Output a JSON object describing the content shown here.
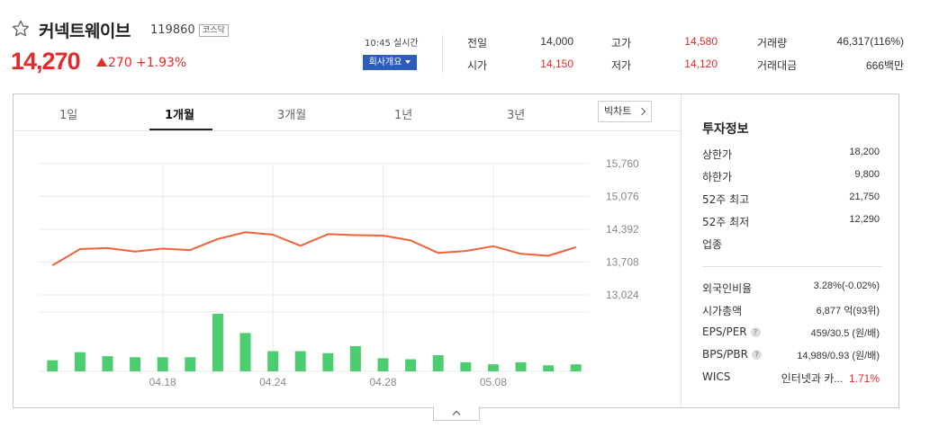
{
  "stock": {
    "name": "커넥트웨이브",
    "code": "119860",
    "market_badge": "코스닥",
    "price": "14,270",
    "change": "270",
    "change_pct": "+1.93%",
    "realtime": "10:45 실시간",
    "company_button": "회사개요"
  },
  "quotes": [
    {
      "label": "전일",
      "value": "14,000",
      "color": "normal"
    },
    {
      "label": "고가",
      "value": "14,580",
      "color": "red"
    },
    {
      "label": "거래량",
      "value": "46,317(116%)",
      "color": "normal"
    },
    {
      "label": "시가",
      "value": "14,150",
      "color": "red"
    },
    {
      "label": "저가",
      "value": "14,120",
      "color": "red"
    },
    {
      "label": "거래대금",
      "value": "666백만",
      "color": "normal"
    }
  ],
  "tabs": [
    "1일",
    "1개월",
    "3개월",
    "1년",
    "3년"
  ],
  "active_tab": "1개월",
  "big_chart_button": "빅차트",
  "chart_data": {
    "type": "line",
    "price_series": [
      13640,
      13980,
      14000,
      13930,
      13990,
      13960,
      14190,
      14330,
      14280,
      14050,
      14290,
      14270,
      14260,
      14160,
      13900,
      13940,
      14040,
      13880,
      13840,
      14020
    ],
    "volume_series": [
      11,
      19,
      15,
      14,
      14,
      14,
      57,
      38,
      20,
      20,
      18,
      25,
      13,
      12,
      16,
      9,
      7,
      9,
      6,
      7
    ],
    "y_ticks": [
      "15,760",
      "15,076",
      "14,392",
      "13,708",
      "13,024"
    ],
    "ylim": [
      13024,
      15760
    ],
    "x_ticks": [
      {
        "label": "04.18",
        "index": 4
      },
      {
        "label": "04.24",
        "index": 8
      },
      {
        "label": "04.28",
        "index": 12
      },
      {
        "label": "05.08",
        "index": 16
      }
    ],
    "line_color": "#f0623c",
    "bar_color": "#4ccd70"
  },
  "invest": {
    "title": "투자정보",
    "items_top": [
      {
        "label": "상한가",
        "value": "18,200",
        "color": "red"
      },
      {
        "label": "하한가",
        "value": "9,800",
        "color": "blue"
      },
      {
        "label": "52주 최고",
        "value": "21,750",
        "color": "normal"
      },
      {
        "label": "52주 최저",
        "value": "12,290",
        "color": "normal"
      },
      {
        "label": "업종",
        "value": "",
        "color": "normal"
      }
    ],
    "items_bottom": [
      {
        "label": "외국인비율",
        "value": "3.28%(-0.02%)"
      },
      {
        "label": "시가총액",
        "value": "6,877 억(93위)"
      },
      {
        "label": "EPS/PER",
        "value": "459/30.5 (원/배)",
        "help": "?"
      },
      {
        "label": "BPS/PBR",
        "value": "14,989/0.93 (원/배)",
        "help": "?"
      }
    ],
    "wics_label": "WICS",
    "wics_value": "인터넷과 카...",
    "wics_pct": "1.71%"
  }
}
